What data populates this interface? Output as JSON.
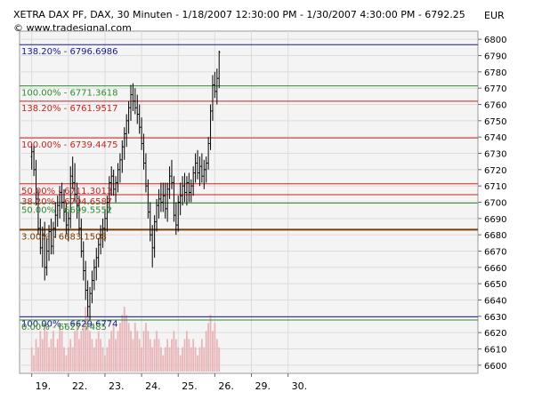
{
  "header": {
    "title": "XETRA DAX PF, DAX, 30 Minuten - 1/18/2007 12:30:00 PM - 1/30/2007 4:30:00 PM - 6792.25",
    "copyright": "© www.tradesignal.com",
    "currency": "EUR"
  },
  "colors": {
    "background": "#ffffff",
    "plot_area": "#f4f4f4",
    "grid": "#dcdcdc",
    "price_bars": "#000000",
    "volume_bars": "#e8b4b8",
    "level_blue": "#1a1a8c",
    "level_green": "#2e8b2e",
    "level_red": "#cc1f1f",
    "level_brown": "#7a3b00"
  },
  "chart_data": {
    "type": "ohlc",
    "title": "XETRA DAX PF, DAX, 30 Minuten - 1/18/2007 12:30:00 PM - 1/30/2007 4:30:00 PM - 6792.25",
    "ylim": [
      6595,
      6805
    ],
    "y_ticks": [
      6600,
      6610,
      6620,
      6630,
      6640,
      6650,
      6660,
      6670,
      6680,
      6690,
      6700,
      6710,
      6720,
      6730,
      6740,
      6750,
      6760,
      6770,
      6780,
      6790,
      6800
    ],
    "x_tick_labels": [
      "19.",
      "22.",
      "23.",
      "24.",
      "25.",
      "26.",
      "29.",
      "30."
    ],
    "bars_per_day": 17,
    "first_bar_offset": 4,
    "levels": [
      {
        "label": "138.20% - 6796.6986",
        "value": 6796.6986,
        "color": "#1a1a8c"
      },
      {
        "label": "100.00% - 6771.3618",
        "value": 6771.3618,
        "color": "#2e8b2e"
      },
      {
        "label": "138.20% - 6761.9517",
        "value": 6761.9517,
        "color": "#cc1f1f"
      },
      {
        "label": "100.00% - 6739.4475",
        "value": 6739.4475,
        "color": "#cc1f1f"
      },
      {
        "label": "50.00% - 6711.3013",
        "value": 6711.3013,
        "color": "#cc1f1f"
      },
      {
        "label": "38.20% - 6704.6587",
        "value": 6704.6587,
        "color": "#cc1f1f"
      },
      {
        "label": "50.00% - 6699.5552",
        "value": 6699.5552,
        "color": "#2e8b2e"
      },
      {
        "label": "3.00% - 6683.1508",
        "value": 6683.1508,
        "color": "#7a3b00"
      },
      {
        "label": "100.00% - 6629.6774",
        "value": 6629.6774,
        "color": "#1a1a8c"
      },
      {
        "label": "0.00% - 6627.7485",
        "value": 6627.7485,
        "color": "#2e8b2e"
      }
    ],
    "series": [
      {
        "type": "ohlc",
        "points": [
          [
            6728,
            6736,
            6720,
            6731
          ],
          [
            6731,
            6735,
            6716,
            6720
          ],
          [
            6720,
            6726,
            6698,
            6702
          ],
          [
            6702,
            6708,
            6680,
            6684
          ],
          [
            6684,
            6690,
            6668,
            6672
          ],
          [
            6672,
            6685,
            6660,
            6680
          ],
          [
            6680,
            6688,
            6652,
            6660
          ],
          [
            6660,
            6678,
            6655,
            6670
          ],
          [
            6670,
            6686,
            6664,
            6682
          ],
          [
            6682,
            6690,
            6668,
            6673
          ],
          [
            6673,
            6688,
            6668,
            6684
          ],
          [
            6684,
            6700,
            6678,
            6692
          ],
          [
            6692,
            6704,
            6685,
            6698
          ],
          [
            6698,
            6710,
            6690,
            6706
          ],
          [
            6706,
            6712,
            6696,
            6700
          ],
          [
            6700,
            6708,
            6688,
            6694
          ],
          [
            6694,
            6700,
            6680,
            6686
          ],
          [
            6686,
            6694,
            6676,
            6690
          ],
          [
            6690,
            6722,
            6684,
            6716
          ],
          [
            6716,
            6728,
            6708,
            6712
          ],
          [
            6712,
            6724,
            6700,
            6705
          ],
          [
            6705,
            6712,
            6690,
            6698
          ],
          [
            6698,
            6704,
            6680,
            6684
          ],
          [
            6684,
            6690,
            6666,
            6670
          ],
          [
            6670,
            6676,
            6652,
            6658
          ],
          [
            6658,
            6664,
            6640,
            6646
          ],
          [
            6646,
            6652,
            6630,
            6636
          ],
          [
            6636,
            6648,
            6628,
            6644
          ],
          [
            6644,
            6658,
            6638,
            6652
          ],
          [
            6652,
            6665,
            6646,
            6660
          ],
          [
            6660,
            6672,
            6652,
            6666
          ],
          [
            6666,
            6678,
            6660,
            6674
          ],
          [
            6674,
            6686,
            6668,
            6680
          ],
          [
            6680,
            6690,
            6672,
            6684
          ],
          [
            6684,
            6696,
            6676,
            6690
          ],
          [
            6690,
            6704,
            6682,
            6700
          ],
          [
            6700,
            6716,
            6694,
            6712
          ],
          [
            6712,
            6722,
            6704,
            6716
          ],
          [
            6716,
            6720,
            6704,
            6708
          ],
          [
            6708,
            6716,
            6700,
            6712
          ],
          [
            6712,
            6724,
            6706,
            6720
          ],
          [
            6720,
            6730,
            6712,
            6726
          ],
          [
            6726,
            6738,
            6718,
            6734
          ],
          [
            6734,
            6746,
            6726,
            6742
          ],
          [
            6742,
            6754,
            6734,
            6750
          ],
          [
            6750,
            6762,
            6742,
            6758
          ],
          [
            6758,
            6772,
            6750,
            6766
          ],
          [
            6766,
            6773,
            6756,
            6762
          ],
          [
            6762,
            6770,
            6754,
            6758
          ],
          [
            6758,
            6766,
            6748,
            6754
          ],
          [
            6754,
            6760,
            6742,
            6746
          ],
          [
            6746,
            6752,
            6732,
            6736
          ],
          [
            6736,
            6742,
            6720,
            6724
          ],
          [
            6724,
            6730,
            6706,
            6710
          ],
          [
            6710,
            6714,
            6690,
            6694
          ],
          [
            6694,
            6700,
            6676,
            6680
          ],
          [
            6680,
            6686,
            6660,
            6672
          ],
          [
            6672,
            6692,
            6666,
            6688
          ],
          [
            6688,
            6702,
            6682,
            6698
          ],
          [
            6698,
            6708,
            6690,
            6702
          ],
          [
            6702,
            6712,
            6694,
            6700
          ],
          [
            6700,
            6712,
            6694,
            6704
          ],
          [
            6704,
            6712,
            6690,
            6696
          ],
          [
            6696,
            6712,
            6688,
            6708
          ],
          [
            6708,
            6722,
            6702,
            6716
          ],
          [
            6716,
            6726,
            6708,
            6712
          ],
          [
            6712,
            6716,
            6688,
            6692
          ],
          [
            6692,
            6700,
            6680,
            6686
          ],
          [
            6686,
            6704,
            6682,
            6700
          ],
          [
            6700,
            6712,
            6692,
            6704
          ],
          [
            6704,
            6716,
            6698,
            6710
          ],
          [
            6710,
            6718,
            6700,
            6706
          ],
          [
            6706,
            6716,
            6698,
            6712
          ],
          [
            6712,
            6718,
            6700,
            6706
          ],
          [
            6706,
            6714,
            6700,
            6710
          ],
          [
            6710,
            6722,
            6704,
            6718
          ],
          [
            6718,
            6730,
            6712,
            6724
          ],
          [
            6724,
            6732,
            6714,
            6718
          ],
          [
            6718,
            6728,
            6710,
            6722
          ],
          [
            6722,
            6730,
            6712,
            6716
          ],
          [
            6716,
            6726,
            6708,
            6720
          ],
          [
            6720,
            6728,
            6712,
            6724
          ],
          [
            6724,
            6740,
            6720,
            6736
          ],
          [
            6736,
            6760,
            6732,
            6756
          ],
          [
            6756,
            6778,
            6750,
            6772
          ],
          [
            6772,
            6780,
            6764,
            6768
          ],
          [
            6768,
            6782,
            6760,
            6776
          ],
          [
            6776,
            6793,
            6770,
            6792
          ]
        ]
      },
      {
        "type": "volume",
        "values": [
          3,
          2,
          4,
          3,
          5,
          4,
          6,
          5,
          3,
          4,
          5,
          3,
          4,
          6,
          5,
          3,
          2,
          3,
          4,
          3,
          5,
          6,
          4,
          5,
          6,
          8,
          7,
          5,
          4,
          3,
          4,
          5,
          4,
          3,
          2,
          3,
          4,
          5,
          6,
          4,
          5,
          6,
          7,
          8,
          7,
          6,
          5,
          4,
          6,
          5,
          4,
          3,
          5,
          6,
          5,
          4,
          3,
          4,
          5,
          4,
          3,
          2,
          3,
          4,
          3,
          4,
          5,
          4,
          3,
          2,
          3,
          4,
          5,
          4,
          3,
          4,
          3,
          2,
          3,
          4,
          3,
          5,
          6,
          7,
          5,
          6,
          4,
          3
        ]
      }
    ]
  }
}
